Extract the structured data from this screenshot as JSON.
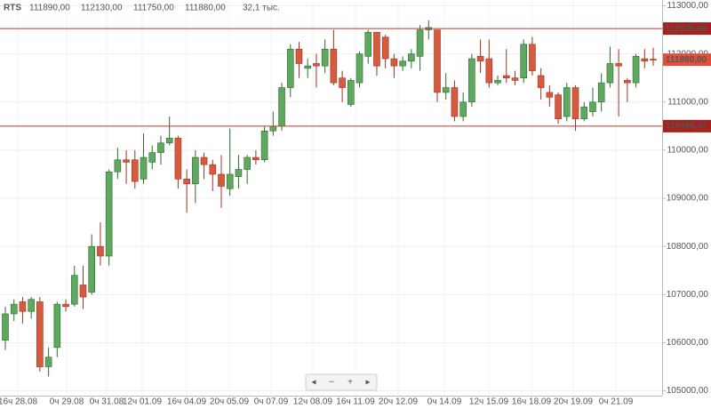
{
  "chart_data": {
    "type": "candlestick",
    "header": {
      "symbol": "RTS",
      "open": "111890,00",
      "high": "112130,00",
      "low": "111750,00",
      "close": "111880,00",
      "volume": "32,1 тыс."
    },
    "xlabels": [
      "16ч 28.08",
      "0ч 29.08",
      "0ч 31.08",
      "12ч 01.09",
      "16ч 04.09",
      "20ч 05.09",
      "0ч 07.09",
      "12ч 08.09",
      "16ч 11.09",
      "20ч 12.09",
      "0ч 14.09",
      "12ч 15.09",
      "16ч 18.09",
      "20ч 19.09",
      "0ч 21.09"
    ],
    "open": [
      106050,
      106600,
      106850,
      106650,
      106850,
      105500,
      105900,
      106800,
      106800,
      107200,
      107050,
      108000,
      107800,
      109550,
      109800,
      109800,
      109400,
      109750,
      109950,
      110150,
      110250,
      109400,
      109300,
      109850,
      109700,
      109500,
      109200,
      109450,
      109600,
      109850,
      109800,
      110400,
      110500,
      111300,
      112100,
      111700,
      111800,
      111750,
      112100,
      111500,
      110950,
      111400,
      111950,
      112450,
      112350,
      111900,
      111750,
      111850,
      111950,
      112500,
      112500,
      111200,
      111300,
      110700,
      111000,
      111950,
      111900,
      111400,
      111550,
      111500,
      111500,
      112200,
      111550,
      111200,
      111150,
      110700,
      111300,
      110650,
      110800,
      111000,
      111400,
      111800,
      111450,
      111400,
      111900,
      111890
    ],
    "high": [
      106750,
      106900,
      106950,
      106950,
      106950,
      105900,
      106850,
      106900,
      107600,
      107600,
      108250,
      108500,
      109600,
      110050,
      110000,
      110000,
      110350,
      110100,
      110300,
      110700,
      110300,
      109600,
      110000,
      109950,
      109800,
      109900,
      110450,
      109900,
      109900,
      110000,
      110500,
      110800,
      111400,
      112200,
      112250,
      111900,
      112000,
      112300,
      112500,
      111650,
      111500,
      112050,
      112500,
      112450,
      112400,
      112000,
      111950,
      112100,
      112600,
      112700,
      112500,
      111600,
      111450,
      111200,
      112000,
      112300,
      112300,
      111550,
      112100,
      111650,
      112300,
      112350,
      111700,
      111350,
      111200,
      111400,
      111350,
      111000,
      111300,
      111600,
      112150,
      112100,
      111500,
      112000,
      112100,
      112130
    ],
    "low": [
      105850,
      106450,
      106400,
      106500,
      105400,
      105300,
      105700,
      106650,
      106750,
      106700,
      107000,
      107600,
      107600,
      109400,
      109300,
      109200,
      109300,
      109600,
      109700,
      110100,
      109200,
      108700,
      108900,
      109400,
      109150,
      108800,
      109050,
      109200,
      109300,
      109700,
      109750,
      110300,
      110400,
      111100,
      111500,
      111500,
      111300,
      111600,
      111350,
      111000,
      110900,
      111300,
      111800,
      111550,
      111700,
      111500,
      111650,
      111700,
      111650,
      112300,
      111000,
      111050,
      110600,
      110600,
      110900,
      111600,
      111300,
      111350,
      111400,
      111350,
      111400,
      111550,
      111050,
      110900,
      110550,
      110600,
      110400,
      110600,
      110700,
      110800,
      111300,
      110700,
      111000,
      111300,
      111700,
      111750
    ],
    "close": [
      106600,
      106800,
      106650,
      106900,
      105500,
      105700,
      106800,
      106750,
      107400,
      106950,
      108000,
      107800,
      109550,
      109800,
      109750,
      109350,
      109850,
      109950,
      110150,
      110250,
      109400,
      109300,
      109850,
      109700,
      109500,
      109250,
      109500,
      109600,
      109850,
      109800,
      110400,
      110500,
      111300,
      112100,
      111800,
      111750,
      111750,
      112100,
      111400,
      111300,
      111450,
      112000,
      112450,
      111750,
      111900,
      111750,
      111850,
      112000,
      112500,
      112550,
      111200,
      111300,
      110700,
      111000,
      111900,
      111850,
      111400,
      111450,
      111500,
      111450,
      112200,
      111650,
      111300,
      111100,
      110650,
      111300,
      110650,
      110900,
      111000,
      111400,
      111800,
      111750,
      111400,
      111950,
      111850,
      111880
    ],
    "up_color": "#5fa85f",
    "down_color": "#d65a3e",
    "ylim": [
      104900,
      113120
    ],
    "yticks": [
      {
        "value": 105000,
        "label": "105000,00"
      },
      {
        "value": 106000,
        "label": "106000,00"
      },
      {
        "value": 107000,
        "label": "107000,00"
      },
      {
        "value": 108000,
        "label": "108000,00"
      },
      {
        "value": 109000,
        "label": "109000,00"
      },
      {
        "value": 110000,
        "label": "110000,00"
      },
      {
        "value": 111000,
        "label": "111000,00"
      },
      {
        "value": 112000,
        "label": "112000,00"
      },
      {
        "value": 113000,
        "label": "113000,00"
      }
    ],
    "grid": true,
    "hlines": [
      {
        "value": 112526.66,
        "label": "112526,66"
      },
      {
        "value": 110499.47,
        "label": "110499,47"
      }
    ],
    "last": {
      "value": 111880,
      "label": "111880,00"
    }
  }
}
